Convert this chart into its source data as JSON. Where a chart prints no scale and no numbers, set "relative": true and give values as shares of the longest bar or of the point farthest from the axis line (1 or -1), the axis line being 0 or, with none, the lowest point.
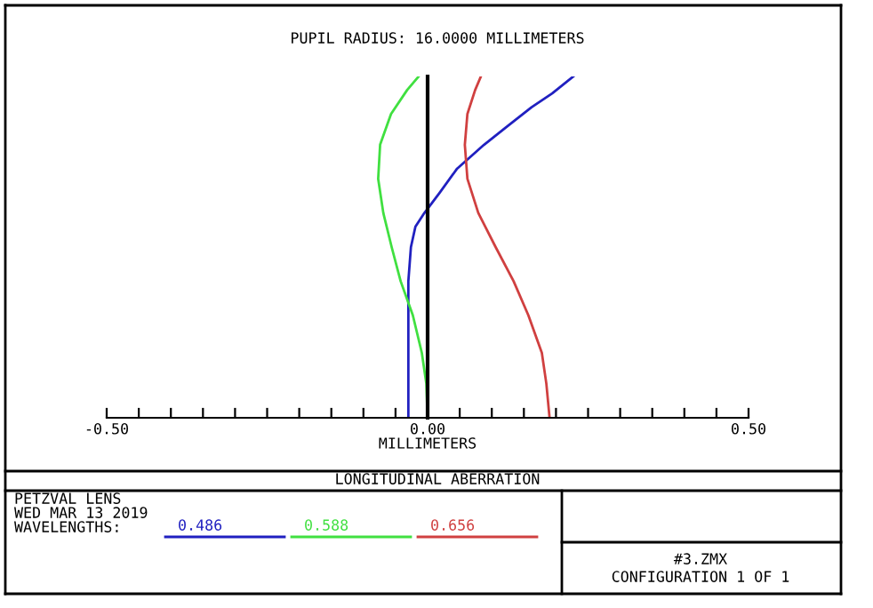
{
  "chart_data": {
    "type": "line",
    "title": "PUPIL RADIUS: 16.0000 MILLIMETERS",
    "xlabel": "MILLIMETERS",
    "relative": true,
    "legend": "bottom",
    "legend_title": "WAVELENGTHS:",
    "marker": "none",
    "line_style": "solid",
    "xlim": [
      -0.5,
      0.5
    ],
    "xticks": [
      {
        "value": -0.5,
        "label": "-0.50"
      },
      {
        "value": -0.45,
        "label": null
      },
      {
        "value": -0.4,
        "label": null
      },
      {
        "value": -0.35,
        "label": null
      },
      {
        "value": -0.3,
        "label": null
      },
      {
        "value": -0.25,
        "label": null
      },
      {
        "value": -0.2,
        "label": null
      },
      {
        "value": -0.15,
        "label": null
      },
      {
        "value": -0.1,
        "label": null
      },
      {
        "value": -0.05,
        "label": null
      },
      {
        "value": 0,
        "label": "0.00"
      },
      {
        "value": 0.05,
        "label": null
      },
      {
        "value": 0.1,
        "label": null
      },
      {
        "value": 0.15,
        "label": null
      },
      {
        "value": 0.2,
        "label": null
      },
      {
        "value": 0.25,
        "label": null
      },
      {
        "value": 0.3,
        "label": null
      },
      {
        "value": 0.35,
        "label": null
      },
      {
        "value": 0.4,
        "label": null
      },
      {
        "value": 0.45,
        "label": null
      },
      {
        "value": 0.5,
        "label": "0.50"
      }
    ],
    "series": [
      {
        "name": "0.486",
        "color": "#2020c0",
        "x": [
          -0.03,
          -0.03,
          -0.03,
          -0.026,
          -0.019,
          -0.005,
          0.019,
          0.046,
          0.088,
          0.125,
          0.162,
          0.194,
          0.227
        ],
        "values": [
          0,
          0.33,
          0.4,
          0.5,
          0.56,
          0.6,
          0.66,
          0.73,
          0.8,
          0.855,
          0.91,
          0.95,
          1.0
        ]
      },
      {
        "name": "0.588",
        "color": "#40e040",
        "x": [
          0.0,
          -0.002,
          -0.009,
          -0.023,
          -0.042,
          -0.056,
          -0.069,
          -0.077,
          -0.074,
          -0.057,
          -0.032,
          -0.014
        ],
        "values": [
          0,
          0.1,
          0.19,
          0.3,
          0.4,
          0.5,
          0.6,
          0.7,
          0.8,
          0.89,
          0.96,
          1.0
        ]
      },
      {
        "name": "0.656",
        "color": "#d04040",
        "x": [
          0.19,
          0.185,
          0.178,
          0.157,
          0.134,
          0.106,
          0.079,
          0.062,
          0.058,
          0.062,
          0.074,
          0.083
        ],
        "values": [
          0,
          0.1,
          0.19,
          0.3,
          0.4,
          0.5,
          0.6,
          0.7,
          0.8,
          0.89,
          0.96,
          1.0
        ]
      }
    ],
    "annotations": [
      "LONGITUDINAL ABERRATION",
      "PETZVAL LENS",
      "WED MAR 13 2019",
      "#3.ZMX",
      "CONFIGURATION 1 OF 1"
    ]
  }
}
